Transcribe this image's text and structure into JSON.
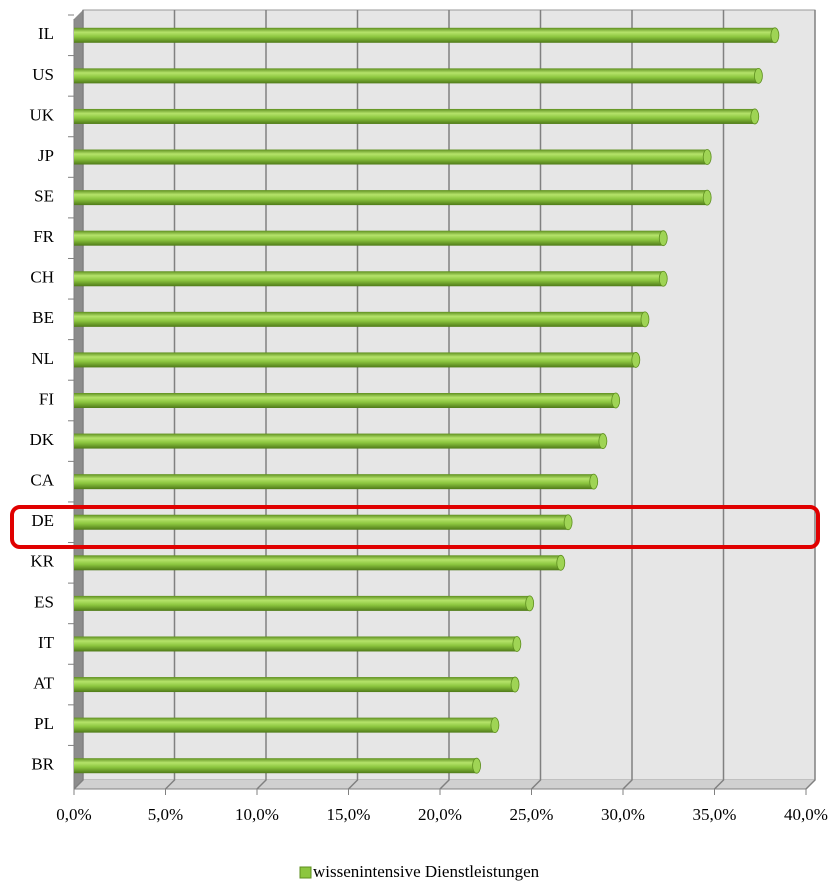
{
  "chart_data": {
    "type": "bar",
    "orientation": "horizontal",
    "categories": [
      "IL",
      "US",
      "UK",
      "JP",
      "SE",
      "FR",
      "CH",
      "BE",
      "NL",
      "FI",
      "DK",
      "CA",
      "DE",
      "KR",
      "ES",
      "IT",
      "AT",
      "PL",
      "BR"
    ],
    "series": [
      {
        "name": "wissenintensive Dienstleistungen",
        "color": "#8cc63f",
        "values": [
          38.3,
          37.4,
          37.2,
          34.6,
          34.6,
          32.2,
          32.2,
          31.2,
          30.7,
          29.6,
          28.9,
          28.4,
          27.0,
          26.6,
          24.9,
          24.2,
          24.1,
          23.0,
          22.0
        ]
      }
    ],
    "xlim": [
      0,
      40
    ],
    "xticks": [
      {
        "value": 0,
        "label": "0,0%"
      },
      {
        "value": 5,
        "label": "5,0%"
      },
      {
        "value": 10,
        "label": "10,0%"
      },
      {
        "value": 15,
        "label": "15,0%"
      },
      {
        "value": 20,
        "label": "20,0%"
      },
      {
        "value": 25,
        "label": "25,0%"
      },
      {
        "value": 30,
        "label": "30,0%"
      },
      {
        "value": 35,
        "label": "35,0%"
      },
      {
        "value": 40,
        "label": "40,0%"
      }
    ],
    "grid": true,
    "legend": "bottom"
  }
}
